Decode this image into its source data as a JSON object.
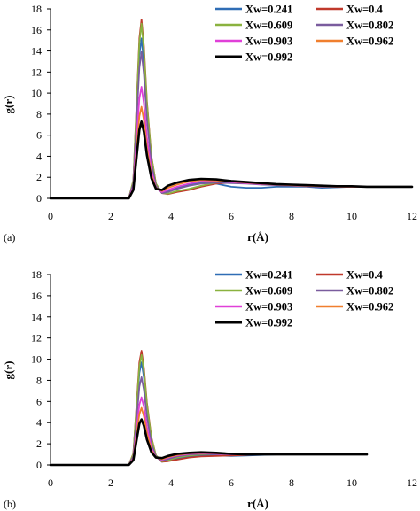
{
  "chart_data": [
    {
      "type": "line",
      "panel_label": "(a)",
      "xlabel": "r(Å)",
      "ylabel": "g(r)",
      "xlim": [
        0,
        12
      ],
      "ylim": [
        0,
        18
      ],
      "xticks": [
        0,
        2,
        4,
        6,
        8,
        10,
        12
      ],
      "yticks": [
        0,
        2,
        4,
        6,
        8,
        10,
        12,
        14,
        16,
        18
      ],
      "legend_placement": "top-right",
      "series": [
        {
          "name": "Xw=0.241",
          "color": "#2f6db5",
          "peak": 15.2,
          "shape": "early",
          "x": [
            0,
            2.6,
            2.75,
            2.85,
            2.95,
            3.02,
            3.1,
            3.2,
            3.35,
            3.5,
            3.7,
            3.9,
            4.2,
            4.6,
            5.0,
            5.5,
            6.0,
            6.5,
            7.0,
            7.5,
            8.0,
            8.5,
            9.0,
            9.5,
            10.0,
            10.5,
            11.0,
            11.5,
            12.0
          ],
          "y": [
            0,
            0,
            1.5,
            7.5,
            13.6,
            15.2,
            12.9,
            8.2,
            3.6,
            1.3,
            0.6,
            0.7,
            1.0,
            1.3,
            1.5,
            1.4,
            1.1,
            1.0,
            1.0,
            1.1,
            1.1,
            1.1,
            1.0,
            1.05,
            1.1,
            1.1,
            1.1,
            1.1,
            1.1
          ]
        },
        {
          "name": "Xw=0.4",
          "color": "#c0392b",
          "peak": 17.0,
          "shape": "late",
          "x": [
            0,
            2.6,
            2.75,
            2.85,
            2.95,
            3.02,
            3.1,
            3.2,
            3.35,
            3.5,
            3.7,
            3.9,
            4.2,
            4.6,
            5.0,
            5.5,
            6.0,
            6.5,
            7.0,
            7.5,
            8.0,
            8.5,
            9.0,
            9.5,
            10.0,
            10.5,
            11.0,
            11.5,
            12.0
          ],
          "y": [
            0,
            0,
            1.7,
            8.4,
            15.2,
            17.0,
            14.5,
            9.2,
            4.0,
            1.4,
            0.5,
            0.4,
            0.6,
            0.8,
            1.1,
            1.4,
            1.5,
            1.45,
            1.35,
            1.25,
            1.2,
            1.15,
            1.15,
            1.1,
            1.1,
            1.1,
            1.1,
            1.1,
            1.1
          ]
        },
        {
          "name": "Xw=0.609",
          "color": "#8ab23f",
          "peak": 16.6,
          "shape": "late",
          "x": [
            0,
            2.6,
            2.75,
            2.85,
            2.95,
            3.02,
            3.1,
            3.2,
            3.35,
            3.5,
            3.7,
            3.9,
            4.2,
            4.6,
            5.0,
            5.5,
            6.0,
            6.5,
            7.0,
            7.5,
            8.0,
            8.5,
            9.0,
            9.5,
            10.0,
            10.5,
            11.0,
            11.5,
            12.0
          ],
          "y": [
            0,
            0,
            1.7,
            8.2,
            14.8,
            16.6,
            14.1,
            9.0,
            3.9,
            1.4,
            0.5,
            0.45,
            0.7,
            0.9,
            1.2,
            1.5,
            1.6,
            1.5,
            1.4,
            1.3,
            1.25,
            1.2,
            1.15,
            1.1,
            1.1,
            1.1,
            1.1,
            1.1,
            1.1
          ]
        },
        {
          "name": "Xw=0.802",
          "color": "#7a5c9e",
          "peak": 13.9,
          "shape": "mid",
          "x": [
            0,
            2.6,
            2.75,
            2.85,
            2.95,
            3.02,
            3.1,
            3.2,
            3.35,
            3.5,
            3.7,
            3.9,
            4.2,
            4.6,
            5.0,
            5.5,
            6.0,
            6.5,
            7.0,
            7.5,
            8.0,
            8.5,
            9.0,
            9.5,
            10.0,
            10.5,
            11.0,
            11.5,
            12.0
          ],
          "y": [
            0,
            0,
            1.4,
            6.9,
            12.4,
            13.9,
            11.8,
            7.5,
            3.3,
            1.2,
            0.5,
            0.6,
            0.9,
            1.2,
            1.4,
            1.5,
            1.45,
            1.4,
            1.3,
            1.25,
            1.2,
            1.15,
            1.1,
            1.1,
            1.1,
            1.1,
            1.1,
            1.1,
            1.1
          ]
        },
        {
          "name": "Xw=0.903",
          "color": "#e040d8",
          "peak": 10.6,
          "shape": "mid",
          "x": [
            0,
            2.6,
            2.75,
            2.85,
            2.95,
            3.02,
            3.1,
            3.2,
            3.35,
            3.5,
            3.7,
            3.9,
            4.2,
            4.6,
            5.0,
            5.5,
            6.0,
            6.5,
            7.0,
            7.5,
            8.0,
            8.5,
            9.0,
            9.5,
            10.0,
            10.5,
            11.0,
            11.5,
            12.0
          ],
          "y": [
            0,
            0,
            1.1,
            5.3,
            9.5,
            10.6,
            9.0,
            5.8,
            2.6,
            1.0,
            0.6,
            0.8,
            1.1,
            1.4,
            1.6,
            1.65,
            1.55,
            1.45,
            1.35,
            1.3,
            1.25,
            1.2,
            1.15,
            1.1,
            1.1,
            1.1,
            1.1,
            1.1,
            1.1
          ]
        },
        {
          "name": "Xw=0.962",
          "color": "#f07f2e",
          "peak": 8.7,
          "shape": "mid",
          "x": [
            0,
            2.6,
            2.75,
            2.85,
            2.95,
            3.02,
            3.1,
            3.2,
            3.35,
            3.5,
            3.7,
            3.9,
            4.2,
            4.6,
            5.0,
            5.5,
            6.0,
            6.5,
            7.0,
            7.5,
            8.0,
            8.5,
            9.0,
            9.5,
            10.0,
            10.5,
            11.0,
            11.5,
            12.0
          ],
          "y": [
            0,
            0,
            0.9,
            4.4,
            7.8,
            8.7,
            7.4,
            4.8,
            2.2,
            1.0,
            0.7,
            1.0,
            1.3,
            1.6,
            1.75,
            1.7,
            1.6,
            1.5,
            1.4,
            1.3,
            1.25,
            1.2,
            1.15,
            1.1,
            1.1,
            1.1,
            1.1,
            1.1,
            1.1
          ]
        },
        {
          "name": "Xw=0.992",
          "color": "#000000",
          "peak": 7.3,
          "shape": "mid",
          "x": [
            0,
            2.6,
            2.75,
            2.85,
            2.95,
            3.02,
            3.1,
            3.2,
            3.35,
            3.5,
            3.7,
            3.9,
            4.2,
            4.6,
            5.0,
            5.5,
            6.0,
            6.5,
            7.0,
            7.5,
            8.0,
            8.5,
            9.0,
            9.5,
            10.0,
            10.5,
            11.0,
            11.5,
            12.0
          ],
          "y": [
            0,
            0,
            0.8,
            3.7,
            6.5,
            7.3,
            6.3,
            4.1,
            1.9,
            0.9,
            0.8,
            1.2,
            1.5,
            1.75,
            1.85,
            1.8,
            1.65,
            1.55,
            1.45,
            1.35,
            1.3,
            1.25,
            1.2,
            1.15,
            1.15,
            1.1,
            1.1,
            1.1,
            1.1
          ]
        }
      ]
    },
    {
      "type": "line",
      "panel_label": "(b)",
      "xlabel": "r(Å)",
      "ylabel": "g(r)",
      "xlim": [
        0,
        12
      ],
      "ylim": [
        0,
        18
      ],
      "xticks": [
        0,
        2,
        4,
        6,
        8,
        10,
        12
      ],
      "yticks": [
        0,
        2,
        4,
        6,
        8,
        10,
        12,
        14,
        16,
        18
      ],
      "legend_placement": "top-right",
      "series": [
        {
          "name": "Xw=0.241",
          "color": "#2f6db5",
          "x": [
            0,
            2.6,
            2.75,
            2.85,
            2.95,
            3.02,
            3.1,
            3.2,
            3.35,
            3.5,
            3.7,
            3.9,
            4.2,
            4.6,
            5.0,
            5.5,
            6.0,
            6.5,
            7.0,
            7.5,
            8.0,
            8.5,
            9.0,
            9.5,
            10.0,
            10.5
          ],
          "y": [
            0,
            0,
            1.0,
            4.8,
            8.7,
            9.7,
            8.3,
            5.3,
            2.3,
            0.8,
            0.3,
            0.4,
            0.6,
            0.8,
            0.9,
            0.9,
            0.85,
            0.9,
            0.95,
            1.0,
            1.0,
            1.0,
            1.0,
            1.0,
            1.0,
            1.0
          ]
        },
        {
          "name": "Xw=0.4",
          "color": "#c0392b",
          "x": [
            0,
            2.6,
            2.75,
            2.85,
            2.95,
            3.02,
            3.1,
            3.2,
            3.35,
            3.5,
            3.7,
            3.9,
            4.2,
            4.6,
            5.0,
            5.5,
            6.0,
            6.5,
            7.0,
            7.5,
            8.0,
            8.5,
            9.0,
            9.5,
            10.0,
            10.5
          ],
          "y": [
            0,
            0,
            1.1,
            5.4,
            9.7,
            10.8,
            9.2,
            5.9,
            2.6,
            0.9,
            0.3,
            0.35,
            0.5,
            0.7,
            0.8,
            0.85,
            0.9,
            0.95,
            1.0,
            1.0,
            1.0,
            1.0,
            1.0,
            1.0,
            1.0,
            1.0
          ]
        },
        {
          "name": "Xw=0.609",
          "color": "#8ab23f",
          "x": [
            0,
            2.6,
            2.75,
            2.85,
            2.95,
            3.02,
            3.1,
            3.2,
            3.35,
            3.5,
            3.7,
            3.9,
            4.2,
            4.6,
            5.0,
            5.5,
            6.0,
            6.5,
            7.0,
            7.5,
            8.0,
            8.5,
            9.0,
            9.5,
            10.0,
            10.5
          ],
          "y": [
            0,
            0,
            1.05,
            5.2,
            9.3,
            10.4,
            8.9,
            5.7,
            2.5,
            0.9,
            0.35,
            0.45,
            0.7,
            0.9,
            1.0,
            1.05,
            1.0,
            1.0,
            1.0,
            1.05,
            1.05,
            1.05,
            1.05,
            1.05,
            1.1,
            1.1
          ]
        },
        {
          "name": "Xw=0.802",
          "color": "#7a5c9e",
          "x": [
            0,
            2.6,
            2.75,
            2.85,
            2.95,
            3.02,
            3.1,
            3.2,
            3.35,
            3.5,
            3.7,
            3.9,
            4.2,
            4.6,
            5.0,
            5.5,
            6.0,
            6.5,
            7.0,
            7.5,
            8.0,
            8.5,
            9.0,
            9.5,
            10.0,
            10.5
          ],
          "y": [
            0,
            0,
            0.8,
            4.1,
            7.4,
            8.3,
            7.1,
            4.6,
            2.0,
            0.8,
            0.4,
            0.55,
            0.8,
            1.0,
            1.05,
            1.05,
            1.0,
            1.0,
            1.0,
            1.0,
            1.0,
            1.0,
            1.0,
            1.0,
            1.0,
            1.0
          ]
        },
        {
          "name": "Xw=0.903",
          "color": "#e040d8",
          "x": [
            0,
            2.6,
            2.75,
            2.85,
            2.95,
            3.02,
            3.1,
            3.2,
            3.35,
            3.5,
            3.7,
            3.9,
            4.2,
            4.6,
            5.0,
            5.5,
            6.0,
            6.5,
            7.0,
            7.5,
            8.0,
            8.5,
            9.0,
            9.5,
            10.0,
            10.5
          ],
          "y": [
            0,
            0,
            0.65,
            3.2,
            5.7,
            6.4,
            5.5,
            3.6,
            1.6,
            0.7,
            0.5,
            0.7,
            0.9,
            1.05,
            1.1,
            1.05,
            1.0,
            1.0,
            1.0,
            1.0,
            1.0,
            1.0,
            1.0,
            1.0,
            1.0,
            1.0
          ]
        },
        {
          "name": "Xw=0.962",
          "color": "#f07f2e",
          "x": [
            0,
            2.6,
            2.75,
            2.85,
            2.95,
            3.02,
            3.1,
            3.2,
            3.35,
            3.5,
            3.7,
            3.9,
            4.2,
            4.6,
            5.0,
            5.5,
            6.0,
            6.5,
            7.0,
            7.5,
            8.0,
            8.5,
            9.0,
            9.5,
            10.0,
            10.5
          ],
          "y": [
            0,
            0,
            0.55,
            2.7,
            4.8,
            5.4,
            4.6,
            3.0,
            1.4,
            0.7,
            0.55,
            0.75,
            0.95,
            1.1,
            1.15,
            1.1,
            1.05,
            1.0,
            1.0,
            1.0,
            1.0,
            1.0,
            1.0,
            1.0,
            1.0,
            1.0
          ]
        },
        {
          "name": "Xw=0.992",
          "color": "#000000",
          "x": [
            0,
            2.6,
            2.75,
            2.85,
            2.95,
            3.02,
            3.1,
            3.2,
            3.35,
            3.5,
            3.7,
            3.9,
            4.2,
            4.6,
            5.0,
            5.5,
            6.0,
            6.5,
            7.0,
            7.5,
            8.0,
            8.5,
            9.0,
            9.5,
            10.0,
            10.5
          ],
          "y": [
            0,
            0,
            0.45,
            2.2,
            3.9,
            4.3,
            3.7,
            2.4,
            1.2,
            0.7,
            0.65,
            0.85,
            1.05,
            1.15,
            1.2,
            1.15,
            1.05,
            1.0,
            1.0,
            1.0,
            1.0,
            1.0,
            1.0,
            1.0,
            1.0,
            1.0
          ]
        }
      ]
    }
  ]
}
